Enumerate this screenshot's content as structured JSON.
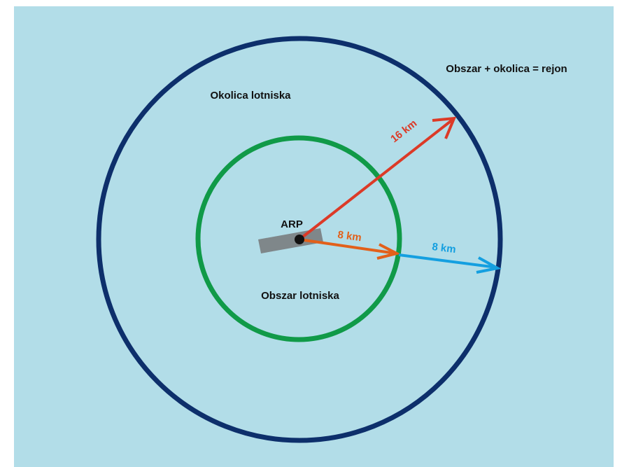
{
  "diagram": {
    "labels": {
      "outer_zone": "Okolica lotniska",
      "inner_zone": "Obszar lotniska",
      "combined": "Obszar + okolica = rejon",
      "center": "ARP"
    },
    "distances": {
      "outer_radius": "16 km",
      "inner_radius": "8 km",
      "ring_width": "8 km"
    },
    "colors": {
      "background": "#b2dde8",
      "outer_circle": "#0d2f6b",
      "inner_circle": "#109a48",
      "arrow_16km": "#dc3a27",
      "arrow_8km_inner": "#e2601a",
      "arrow_8km_ring": "#149fe0",
      "runway": "#7f878a",
      "arp_point": "#111111",
      "text_dark": "#111111"
    }
  }
}
